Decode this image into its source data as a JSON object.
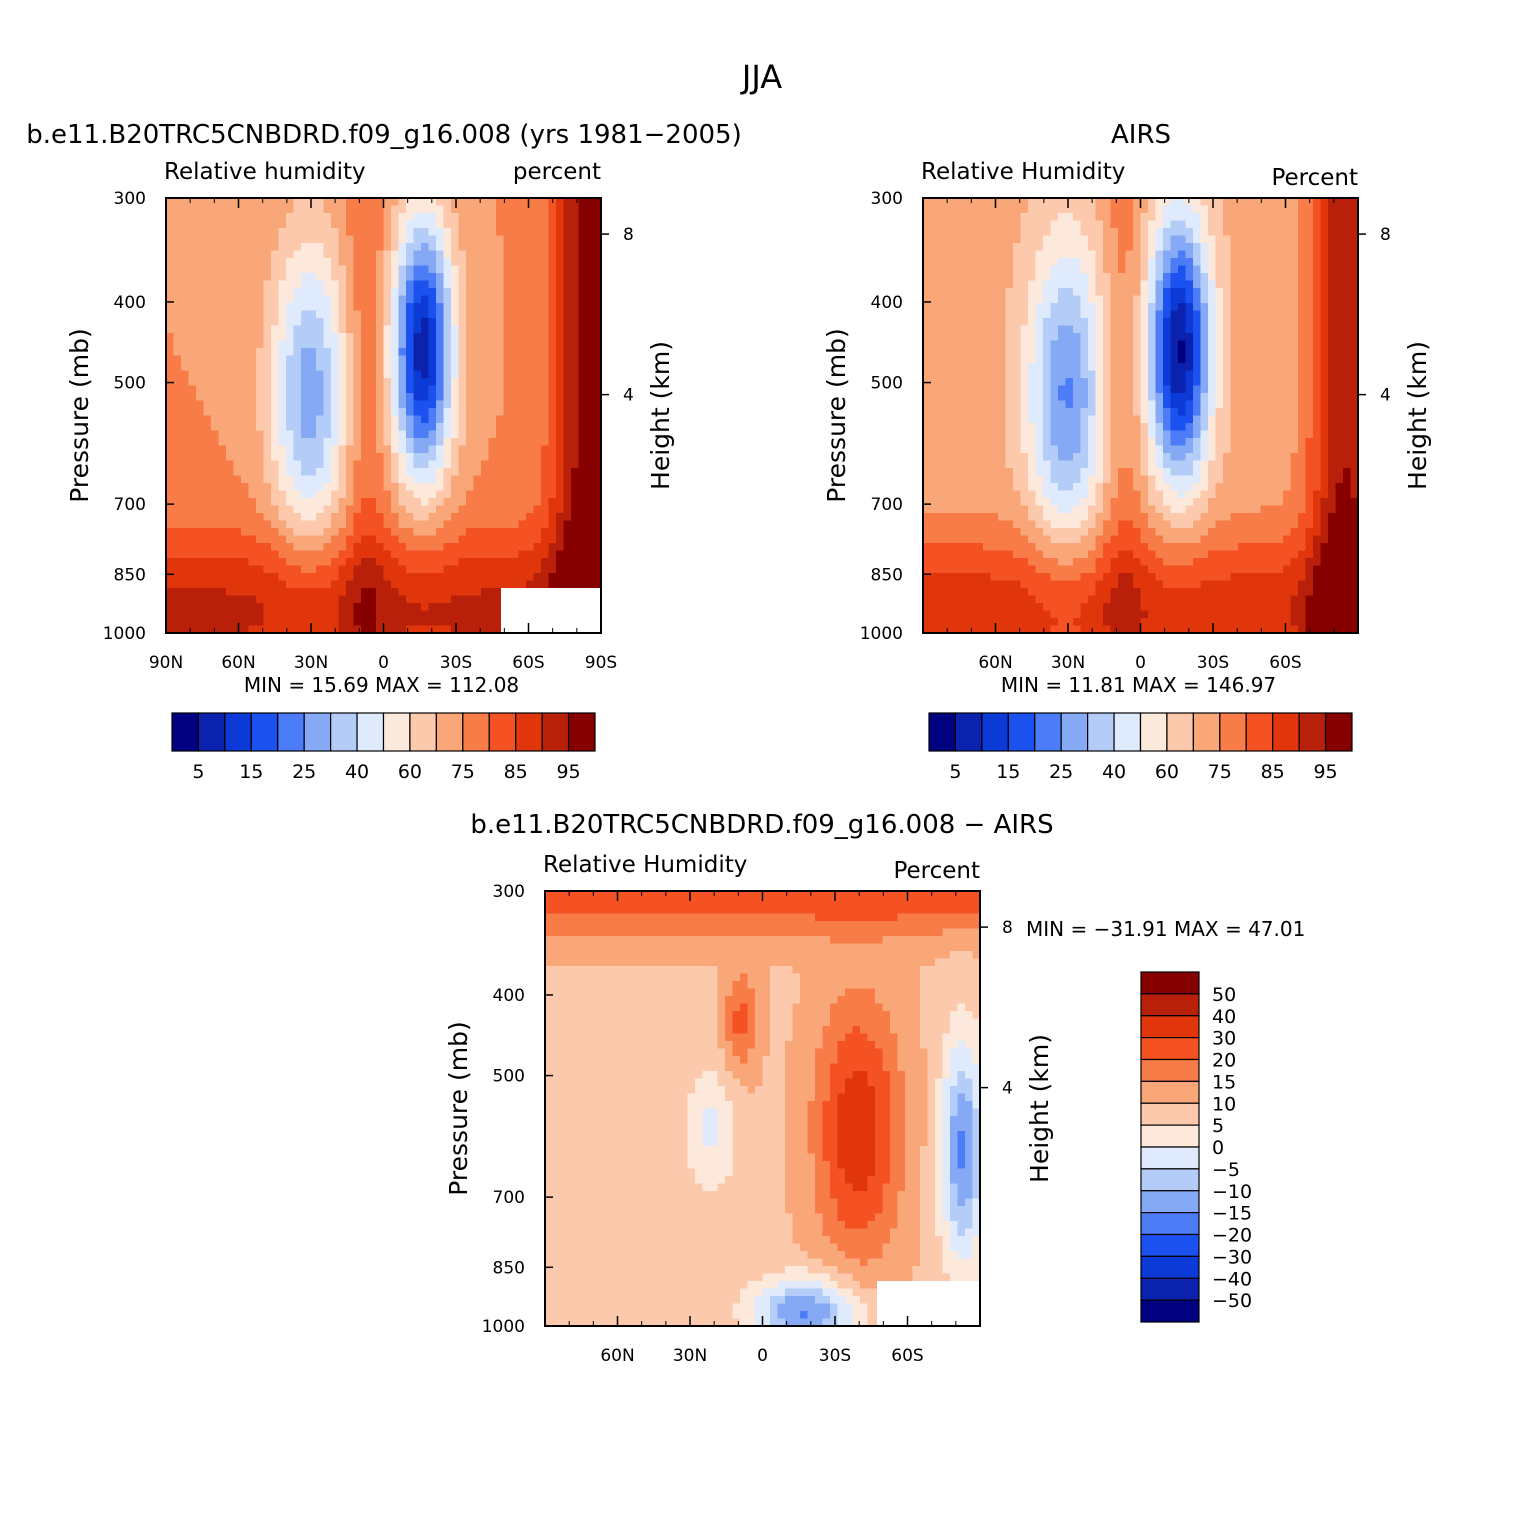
{
  "figure": {
    "title": "JJA"
  },
  "colors": {
    "abs": [
      "#000080",
      "#0b22ae",
      "#0b3ad6",
      "#1b51ee",
      "#4c7df7",
      "#86a9f5",
      "#b4cdf8",
      "#dfeafd",
      "#fde9dc",
      "#fcc9ad",
      "#f9a679",
      "#f77c47",
      "#f55223",
      "#e1360b",
      "#b9200a",
      "#870000"
    ],
    "diff": [
      "#000080",
      "#0b22ae",
      "#0b3ad6",
      "#1b51ee",
      "#4c7df7",
      "#86a9f5",
      "#b4cdf8",
      "#dfeafd",
      "#fde9dc",
      "#fcc9ad",
      "#f9a679",
      "#f77c47",
      "#f55223",
      "#e1360b",
      "#b9200a",
      "#870000"
    ]
  },
  "chart_data": [
    {
      "type": "heatmap",
      "title": "b.e11.B20TRC5CNBDRD.f09_g16.008 (yrs 1981−2005)",
      "left_label": "Relative humidity",
      "right_label": "percent",
      "ylabel": "Pressure (mb)",
      "y2label": "Height (km)",
      "y_ticks": [
        "300",
        "400",
        "500",
        "700",
        "850",
        "1000"
      ],
      "y2_ticks": [
        "8",
        "4"
      ],
      "x_ticks": [
        "90N",
        "60N",
        "30N",
        "0",
        "30S",
        "60S",
        "90S"
      ],
      "min_text": "MIN =   15.69   MAX = 112.08",
      "colorbar_labels": [
        "5",
        "15",
        "25",
        "40",
        "60",
        "75",
        "85",
        "95"
      ]
    },
    {
      "type": "heatmap",
      "title": "AIRS",
      "left_label": "Relative Humidity",
      "right_label": "Percent",
      "ylabel": "Pressure (mb)",
      "y2label": "Height (km)",
      "y_ticks": [
        "300",
        "400",
        "500",
        "700",
        "850",
        "1000"
      ],
      "y2_ticks": [
        "8",
        "4"
      ],
      "x_ticks": [
        "60N",
        "30N",
        "0",
        "30S",
        "60S"
      ],
      "min_text": "MIN =   11.81   MAX = 146.97",
      "colorbar_labels": [
        "5",
        "15",
        "25",
        "40",
        "60",
        "75",
        "85",
        "95"
      ]
    },
    {
      "type": "heatmap",
      "title": "b.e11.B20TRC5CNBDRD.f09_g16.008 − AIRS",
      "left_label": "Relative Humidity",
      "right_label": "Percent",
      "ylabel": "Pressure (mb)",
      "y2label": "Height (km)",
      "y_ticks": [
        "300",
        "400",
        "500",
        "700",
        "850",
        "1000"
      ],
      "y2_ticks": [
        "8",
        "4"
      ],
      "x_ticks": [
        "60N",
        "30N",
        "0",
        "30S",
        "60S"
      ],
      "min_text": "MIN = −31.91    MAX =    47.01",
      "colorbar_labels": [
        "50",
        "40",
        "30",
        "20",
        "15",
        "10",
        "5",
        "0",
        "−5",
        "−10",
        "−15",
        "−20",
        "−30",
        "−40",
        "−50"
      ]
    }
  ]
}
